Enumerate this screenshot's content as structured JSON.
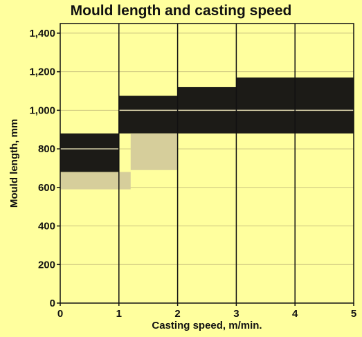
{
  "chart_data": {
    "type": "area",
    "title": "Mould length and casting speed",
    "xlabel": "Casting speed, m/min.",
    "ylabel": "Mould length, mm",
    "xlim": [
      0,
      5
    ],
    "ylim": [
      0,
      1450
    ],
    "x_ticks": [
      "0",
      "1",
      "2",
      "3",
      "4",
      "5"
    ],
    "y_ticks": [
      "0",
      "200",
      "400",
      "600",
      "800",
      "1,000",
      "1,200",
      "1,400"
    ],
    "grid": true,
    "legend": "none",
    "series": [
      {
        "color": "#1c1b17",
        "bands": [
          {
            "x": [
              0,
              1
            ],
            "y": [
              680,
              880
            ]
          },
          {
            "x": [
              1,
              2
            ],
            "y": [
              880,
              1075
            ]
          },
          {
            "x": [
              2,
              3
            ],
            "y": [
              880,
              1120
            ]
          },
          {
            "x": [
              3,
              5
            ],
            "y": [
              880,
              1170
            ]
          }
        ]
      },
      {
        "color": "#d6ce9b",
        "bands": [
          {
            "x": [
              0,
              1.2
            ],
            "y": [
              590,
              680
            ]
          },
          {
            "x": [
              1.2,
              2
            ],
            "y": [
              690,
              880
            ]
          }
        ]
      },
      {
        "color": "#e6dfb4",
        "lines": [
          {
            "x": [
              0,
              1
            ],
            "y": 800
          },
          {
            "x": [
              1,
              5
            ],
            "y": 1000
          }
        ]
      }
    ]
  }
}
